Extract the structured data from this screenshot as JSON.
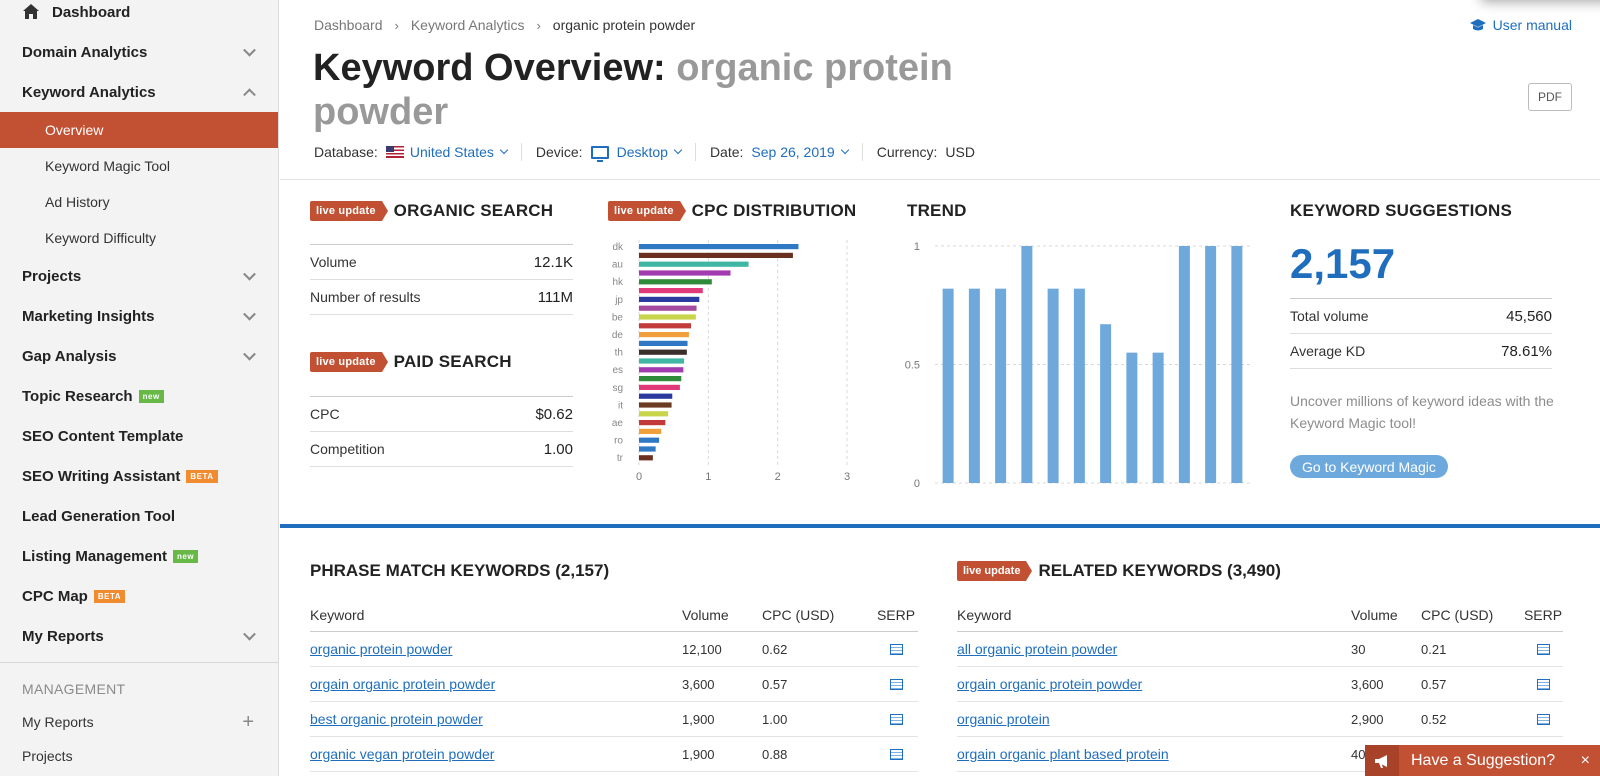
{
  "sidebar": {
    "dashboard": "Dashboard",
    "domain_analytics": "Domain Analytics",
    "keyword_analytics": "Keyword Analytics",
    "sub_items": [
      "Overview",
      "Keyword Magic Tool",
      "Ad History",
      "Keyword Difficulty"
    ],
    "projects": "Projects",
    "marketing_insights": "Marketing Insights",
    "gap_analysis": "Gap Analysis",
    "topic_research": "Topic Research",
    "seo_content_template": "SEO Content Template",
    "seo_writing_assistant": "SEO Writing Assistant",
    "lead_generation_tool": "Lead Generation Tool",
    "listing_management": "Listing Management",
    "cpc_map": "CPC Map",
    "my_reports": "My Reports",
    "badge_new": "new",
    "badge_beta": "BETA",
    "management_header": "MANAGEMENT",
    "mgmt_my_reports": "My Reports",
    "mgmt_projects": "Projects"
  },
  "header": {
    "breadcrumb": [
      "Dashboard",
      "Keyword Analytics",
      "organic protein powder"
    ],
    "user_manual": "User manual",
    "title_prefix": "Keyword Overview:",
    "title_keyword": "organic protein powder",
    "pdf": "PDF",
    "database_label": "Database:",
    "database_value": "United States",
    "device_label": "Device:",
    "device_value": "Desktop",
    "date_label": "Date:",
    "date_value": "Sep 26, 2019",
    "currency_label": "Currency:",
    "currency_value": "USD"
  },
  "live_update": "live update",
  "organic": {
    "title": "ORGANIC SEARCH",
    "rows": [
      {
        "label": "Volume",
        "value": "12.1K"
      },
      {
        "label": "Number of results",
        "value": "111M"
      }
    ]
  },
  "paid": {
    "title": "PAID SEARCH",
    "rows": [
      {
        "label": "CPC",
        "value": "$0.62"
      },
      {
        "label": "Competition",
        "value": "1.00"
      }
    ]
  },
  "cpc": {
    "title": "CPC DISTRIBUTION",
    "colors": [
      "#2f78c4",
      "#6b2f1f",
      "#3fb7a4",
      "#a23bb0",
      "#2e8b3a",
      "#e03a7a",
      "#2a3a9e",
      "#a34aa0",
      "#c8d44a",
      "#c23a3a",
      "#f0a03a",
      "#2f78c4",
      "#3a2f2a",
      "#3fb7a4",
      "#a23bb0",
      "#2e8b3a",
      "#e03a7a",
      "#2a3a9e",
      "#6b3a1f",
      "#c8d44a",
      "#c23a3a",
      "#f0a03a",
      "#2f78c4"
    ]
  },
  "trend": {
    "title": "TREND"
  },
  "suggestions": {
    "title": "KEYWORD SUGGESTIONS",
    "count": "2,157",
    "rows": [
      {
        "label": "Total volume",
        "value": "45,560"
      },
      {
        "label": "Average KD",
        "value": "78.61%"
      }
    ],
    "text": "Uncover millions of keyword ideas with the Keyword Magic tool!",
    "button": "Go to Keyword Magic"
  },
  "phrase": {
    "title": "PHRASE MATCH KEYWORDS (2,157)",
    "headers": [
      "Keyword",
      "Volume",
      "CPC (USD)",
      "SERP"
    ],
    "rows": [
      {
        "keyword": "organic protein powder",
        "volume": "12,100",
        "cpc": "0.62"
      },
      {
        "keyword": "orgain organic protein powder",
        "volume": "3,600",
        "cpc": "0.57"
      },
      {
        "keyword": "best organic protein powder",
        "volume": "1,900",
        "cpc": "1.00"
      },
      {
        "keyword": "organic vegan protein powder",
        "volume": "1,900",
        "cpc": "0.88"
      }
    ]
  },
  "related": {
    "title": "RELATED KEYWORDS (3,490)",
    "headers": [
      "Keyword",
      "Volume",
      "CPC (USD)",
      "SERP"
    ],
    "rows": [
      {
        "keyword": "all organic protein powder",
        "volume": "30",
        "cpc": "0.21"
      },
      {
        "keyword": "orgain organic protein powder",
        "volume": "3,600",
        "cpc": "0.57"
      },
      {
        "keyword": "organic protein",
        "volume": "2,900",
        "cpc": "0.52"
      },
      {
        "keyword": "orgain organic plant based protein",
        "volume": "40",
        "cpc": ""
      }
    ]
  },
  "suggestion_popup": {
    "text": "Have a Suggestion?",
    "close": "×"
  },
  "chart_data": [
    {
      "type": "bar",
      "orientation": "horizontal",
      "title": "CPC DISTRIBUTION",
      "categories": [
        "dk",
        "",
        "au",
        "",
        "hk",
        "",
        "jp",
        "",
        "be",
        "",
        "de",
        "",
        "th",
        "",
        "es",
        "",
        "sg",
        "",
        "it",
        "",
        "ae",
        "",
        "ro",
        "",
        "tr"
      ],
      "values": [
        2.3,
        2.22,
        1.58,
        1.32,
        1.05,
        0.92,
        0.87,
        0.83,
        0.82,
        0.75,
        0.72,
        0.7,
        0.69,
        0.65,
        0.64,
        0.61,
        0.59,
        0.48,
        0.47,
        0.42,
        0.38,
        0.32,
        0.29,
        0.24,
        0.2
      ],
      "xlim": [
        0,
        3
      ],
      "x_ticks": [
        "0",
        "1",
        "2",
        "3"
      ],
      "grid": true
    },
    {
      "type": "bar",
      "title": "TREND",
      "values": [
        0.82,
        0.82,
        0.82,
        1.0,
        0.82,
        0.82,
        0.67,
        0.55,
        0.55,
        1.0,
        1.0,
        1.0
      ],
      "ylim": [
        0,
        1
      ],
      "y_ticks": [
        "0",
        "0.5",
        "1"
      ],
      "color": "#6fa9dc",
      "grid": true
    }
  ]
}
